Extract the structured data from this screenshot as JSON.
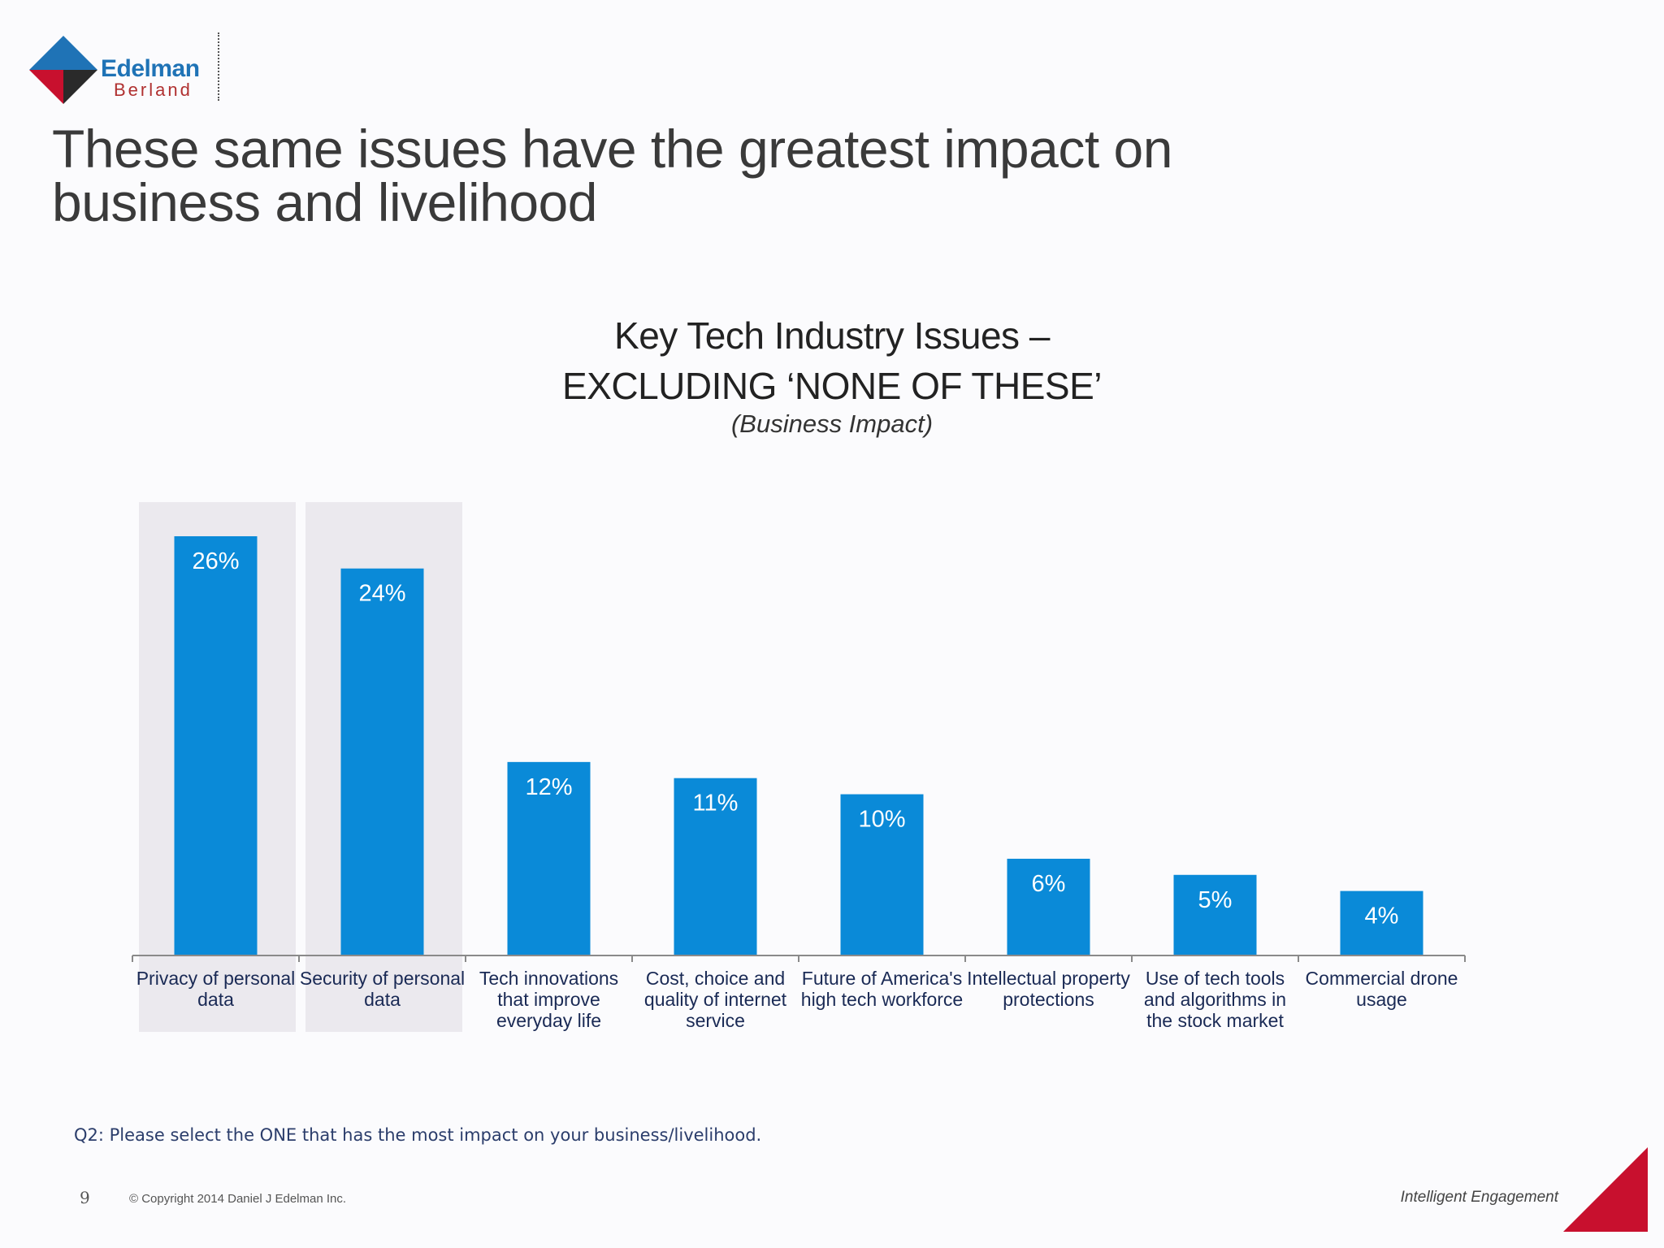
{
  "brand": {
    "name_line1": "Edelman",
    "name_line2": "Berland",
    "colors": {
      "blue": "#1f73b6",
      "red": "#c8102e",
      "dark": "#2a2a2a"
    }
  },
  "slide": {
    "title_line1": "These same issues have the greatest impact on",
    "title_line2": "business and livelihood",
    "footnote": "Q2: Please select the ONE that has the most impact on your business/livelihood.",
    "page_number": "9",
    "copyright": "© Copyright 2014 Daniel J Edelman Inc.",
    "tagline": "Intelligent Engagement"
  },
  "chart_data": {
    "type": "bar",
    "title_line1": "Key Tech Industry Issues –",
    "title_line2": "EXCLUDING ‘NONE OF THESE’",
    "subtitle": "(Business Impact)",
    "categories": [
      [
        "Privacy of personal",
        "data"
      ],
      [
        "Security of personal",
        "data"
      ],
      [
        "Tech innovations",
        "that improve",
        "everyday life"
      ],
      [
        "Cost, choice and",
        "quality of internet",
        "service"
      ],
      [
        "Future of America's",
        "high tech workforce"
      ],
      [
        "Intellectual property",
        "protections"
      ],
      [
        "Use of tech tools",
        "and algorithms in",
        "the stock market"
      ],
      [
        "Commercial drone",
        "usage"
      ]
    ],
    "values": [
      26,
      24,
      12,
      11,
      10,
      6,
      5,
      4
    ],
    "value_labels": [
      "26%",
      "24%",
      "12%",
      "11%",
      "10%",
      "6%",
      "5%",
      "4%"
    ],
    "highlighted": [
      0,
      1
    ],
    "ylim": [
      0,
      26
    ],
    "bar_color": "#0a8ad8",
    "highlight_color": "#ebe9ee",
    "grid": false
  }
}
